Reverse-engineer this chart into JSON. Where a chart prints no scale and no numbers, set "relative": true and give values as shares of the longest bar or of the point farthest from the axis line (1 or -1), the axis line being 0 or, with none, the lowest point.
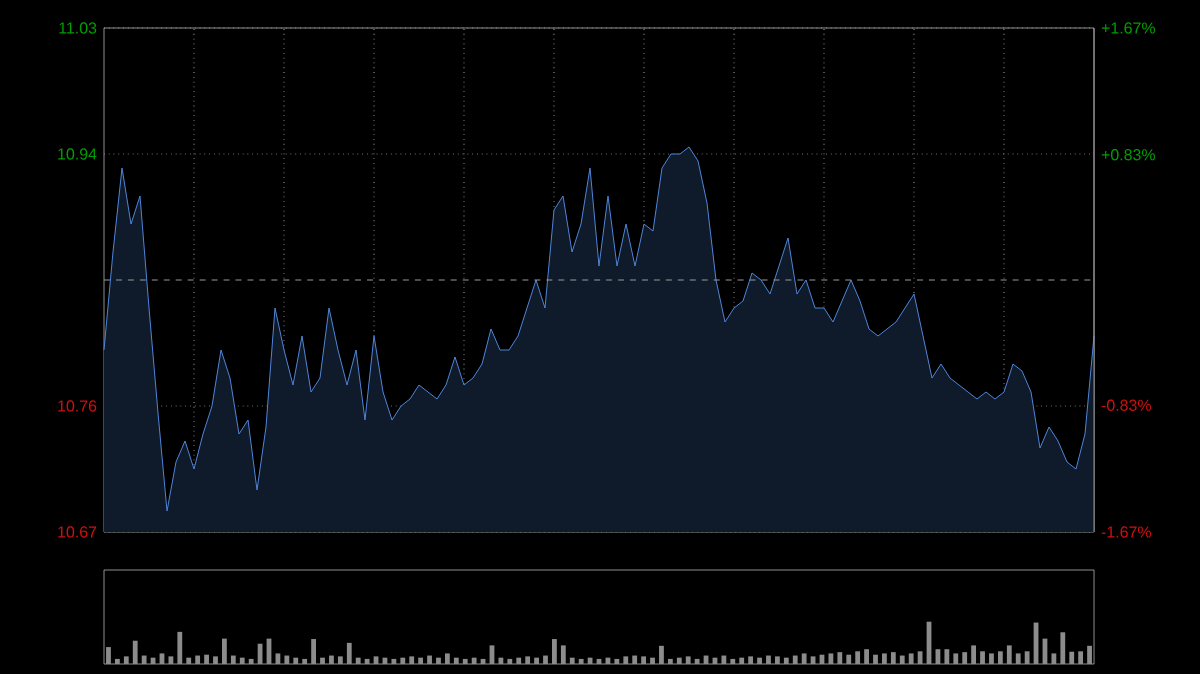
{
  "chart_data": [
    {
      "type": "area",
      "color": "#4f86d9",
      "categories": [
        null,
        null,
        null,
        null,
        null,
        null,
        null,
        null,
        null,
        null,
        null,
        null,
        null,
        null,
        null,
        null,
        null,
        null,
        null,
        null,
        null,
        null,
        null,
        null,
        null,
        null,
        null,
        null,
        null,
        null,
        null,
        null,
        null,
        null,
        null,
        null,
        null,
        null,
        null,
        null,
        null,
        null,
        null,
        null,
        null,
        null,
        null,
        null,
        null,
        null,
        null,
        null,
        null,
        null,
        null,
        null,
        null,
        null,
        null,
        null,
        null,
        null,
        null,
        null,
        null,
        null,
        null,
        null,
        null,
        null,
        null,
        null,
        null,
        null,
        null,
        null,
        null,
        null,
        null,
        null,
        null,
        null,
        null,
        null,
        null,
        null,
        null,
        null,
        null,
        null,
        null,
        null,
        null,
        null,
        null,
        null,
        null,
        null,
        null,
        null,
        null,
        null,
        null,
        null,
        null,
        null,
        null,
        null,
        null,
        null,
        null
      ],
      "values": [
        10.8,
        10.87,
        10.93,
        10.89,
        10.91,
        10.83,
        10.755,
        10.685,
        10.72,
        10.735,
        10.715,
        10.74,
        10.76,
        10.8,
        10.78,
        10.74,
        10.75,
        10.7,
        10.745,
        10.83,
        10.8,
        10.775,
        10.81,
        10.77,
        10.78,
        10.83,
        10.8,
        10.775,
        10.8,
        10.75,
        10.81,
        10.77,
        10.75,
        10.76,
        10.765,
        10.775,
        10.77,
        10.765,
        10.775,
        10.795,
        10.775,
        10.78,
        10.79,
        10.815,
        10.8,
        10.8,
        10.81,
        10.83,
        10.85,
        10.83,
        10.9,
        10.91,
        10.87,
        10.89,
        10.93,
        10.86,
        10.91,
        10.86,
        10.89,
        10.86,
        10.89,
        10.885,
        10.93,
        10.94,
        10.94,
        10.945,
        10.935,
        10.905,
        10.85,
        10.82,
        10.83,
        10.835,
        10.855,
        10.85,
        10.84,
        10.86,
        10.88,
        10.84,
        10.85,
        10.83,
        10.83,
        10.82,
        10.835,
        10.85,
        10.835,
        10.815,
        10.81,
        10.815,
        10.82,
        10.83,
        10.84,
        10.81,
        10.78,
        10.79,
        10.78,
        10.775,
        10.77,
        10.765,
        10.77,
        10.765,
        10.77,
        10.79,
        10.785,
        10.77,
        10.73,
        10.745,
        10.735,
        10.72,
        10.715,
        10.74,
        10.81
      ],
      "ylim": [
        10.67,
        11.03
      ],
      "yticks": [
        10.67,
        10.76,
        10.94,
        11.03
      ],
      "y2lim": [
        -1.67,
        1.67
      ],
      "y2ticks": [
        {
          "value": -1.67,
          "label": "-1.67%"
        },
        {
          "value": -0.83,
          "label": "-0.83%"
        },
        {
          "value": 0.83,
          "label": "+0.83%"
        },
        {
          "value": 1.67,
          "label": "+1.67%"
        }
      ],
      "ref_lines": [
        {
          "axis": "y",
          "value": 10.85,
          "line_style": "dashed"
        }
      ],
      "grid": true
    },
    {
      "type": "bar",
      "relative": true,
      "color": "#8c8c8c",
      "categories": [
        null,
        null,
        null,
        null,
        null,
        null,
        null,
        null,
        null,
        null,
        null,
        null,
        null,
        null,
        null,
        null,
        null,
        null,
        null,
        null,
        null,
        null,
        null,
        null,
        null,
        null,
        null,
        null,
        null,
        null,
        null,
        null,
        null,
        null,
        null,
        null,
        null,
        null,
        null,
        null,
        null,
        null,
        null,
        null,
        null,
        null,
        null,
        null,
        null,
        null,
        null,
        null,
        null,
        null,
        null,
        null,
        null,
        null,
        null,
        null,
        null,
        null,
        null,
        null,
        null,
        null,
        null,
        null,
        null,
        null,
        null,
        null,
        null,
        null,
        null,
        null,
        null,
        null,
        null,
        null,
        null,
        null,
        null,
        null,
        null,
        null,
        null,
        null,
        null,
        null,
        null,
        null,
        null,
        null,
        null,
        null,
        null,
        null,
        null,
        null,
        null,
        null,
        null,
        null,
        null,
        null,
        null,
        null,
        null,
        null,
        null
      ],
      "values": [
        0.4,
        0.12,
        0.18,
        0.55,
        0.2,
        0.15,
        0.25,
        0.18,
        0.76,
        0.15,
        0.2,
        0.22,
        0.18,
        0.6,
        0.2,
        0.15,
        0.12,
        0.48,
        0.6,
        0.25,
        0.2,
        0.15,
        0.12,
        0.59,
        0.15,
        0.2,
        0.18,
        0.5,
        0.15,
        0.12,
        0.18,
        0.15,
        0.12,
        0.15,
        0.18,
        0.15,
        0.2,
        0.15,
        0.25,
        0.15,
        0.12,
        0.15,
        0.12,
        0.44,
        0.15,
        0.12,
        0.15,
        0.18,
        0.15,
        0.2,
        0.59,
        0.44,
        0.15,
        0.12,
        0.15,
        0.12,
        0.15,
        0.12,
        0.18,
        0.2,
        0.18,
        0.15,
        0.43,
        0.12,
        0.15,
        0.18,
        0.12,
        0.2,
        0.15,
        0.2,
        0.12,
        0.15,
        0.18,
        0.15,
        0.2,
        0.18,
        0.15,
        0.2,
        0.25,
        0.18,
        0.22,
        0.25,
        0.28,
        0.22,
        0.3,
        0.35,
        0.22,
        0.25,
        0.28,
        0.2,
        0.25,
        0.3,
        1.0,
        0.35,
        0.35,
        0.25,
        0.28,
        0.44,
        0.3,
        0.25,
        0.3,
        0.44,
        0.25,
        0.3,
        0.98,
        0.6,
        0.25,
        0.75,
        0.29,
        0.3,
        0.43
      ]
    }
  ]
}
